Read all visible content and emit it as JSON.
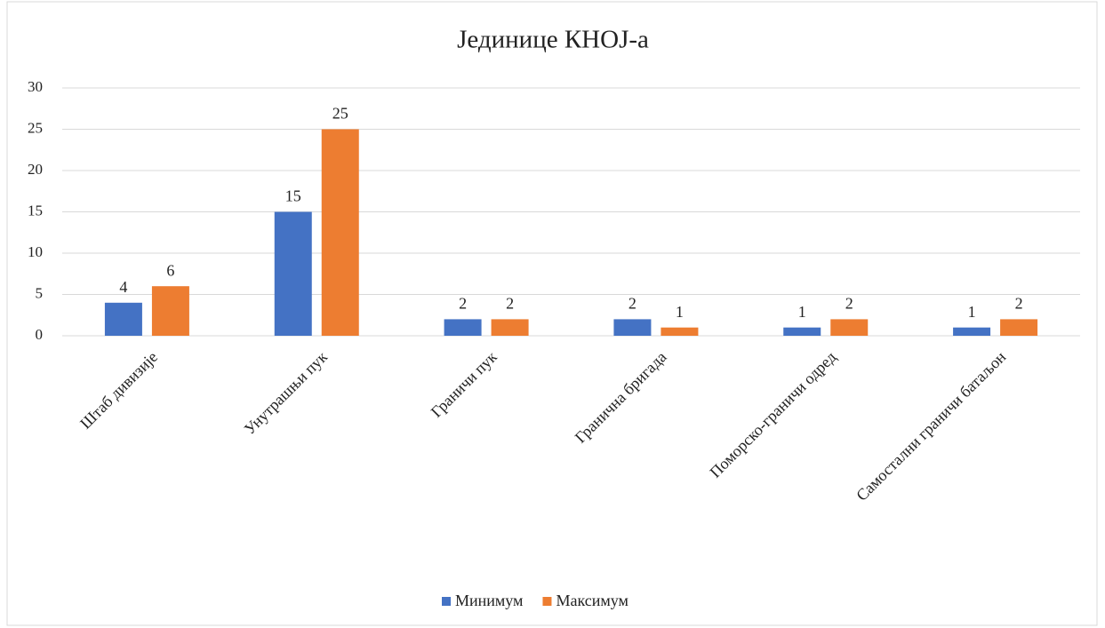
{
  "chart_data": {
    "type": "bar",
    "title": "Јединице КНОЈ-а",
    "categories": [
      "Штаб дивизије",
      "Унутрашњи пук",
      "Граничи пук",
      "Гранична бригада",
      "Поморско-граничи одред",
      "Самостални граничи батаљон"
    ],
    "series": [
      {
        "name": "Минимум",
        "color": "#4472c4",
        "values": [
          4,
          15,
          2,
          2,
          1,
          1
        ]
      },
      {
        "name": "Максимум",
        "color": "#ed7d31",
        "values": [
          6,
          25,
          2,
          1,
          2,
          2
        ]
      }
    ],
    "ylim": [
      0,
      30
    ],
    "yticks": [
      0,
      5,
      10,
      15,
      20,
      25,
      30
    ],
    "grid": true,
    "legend": "bottom"
  }
}
